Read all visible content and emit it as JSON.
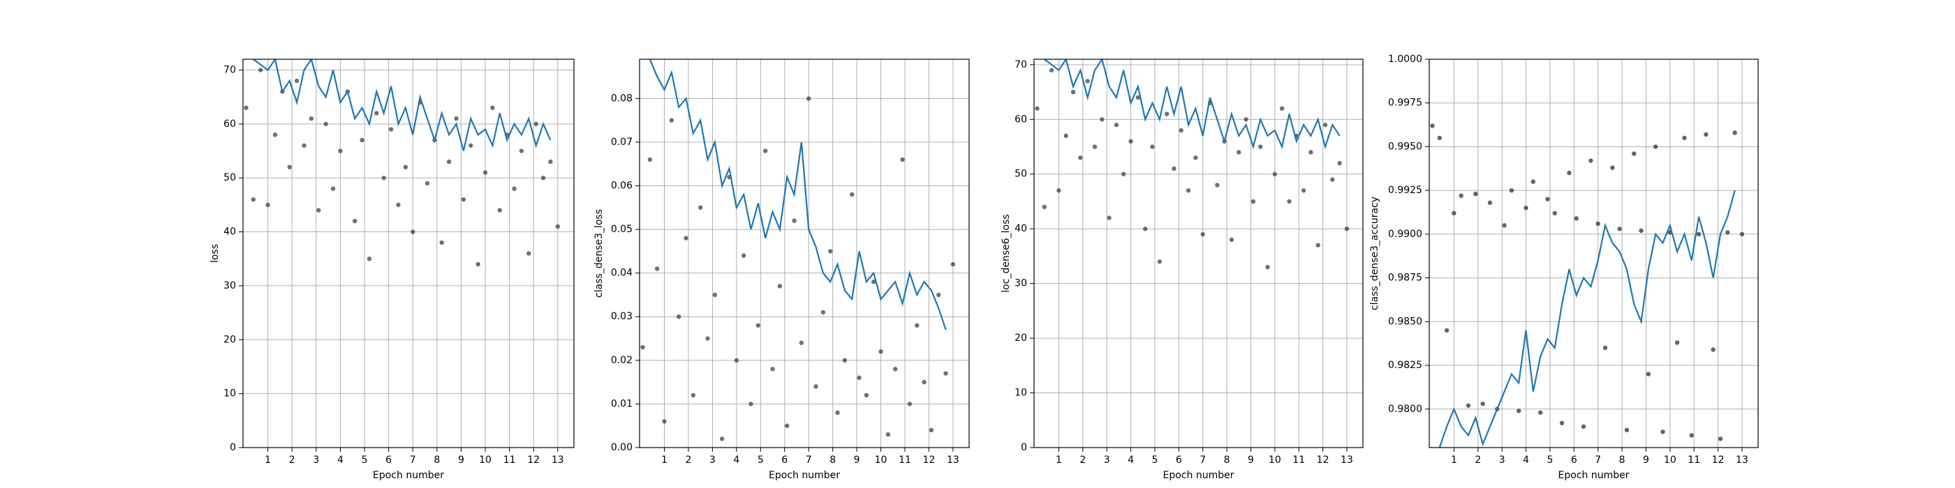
{
  "chart_data": [
    {
      "type": "scatter",
      "xlabel": "Epoch number",
      "ylabel": "loss",
      "grid": true,
      "xlim": [
        -0.03,
        13.67
      ],
      "xticks": [
        1,
        2,
        3,
        4,
        5,
        6,
        7,
        8,
        9,
        10,
        11,
        12,
        13
      ],
      "ylim": [
        0,
        72
      ],
      "yticks": [
        0,
        10,
        20,
        30,
        40,
        50,
        60,
        70
      ],
      "series": [
        {
          "type": "scatter",
          "color": "#333333",
          "x": [
            0.1,
            0.4,
            0.7,
            1.0,
            1.3,
            1.6,
            1.9,
            2.2,
            2.5,
            2.8,
            3.1,
            3.4,
            3.7,
            4.0,
            4.3,
            4.6,
            4.9,
            5.2,
            5.5,
            5.8,
            6.1,
            6.4,
            6.7,
            7.0,
            7.3,
            7.6,
            7.9,
            8.2,
            8.5,
            8.8,
            9.1,
            9.4,
            9.7,
            10.0,
            10.3,
            10.6,
            10.9,
            11.2,
            11.5,
            11.8,
            12.1,
            12.4,
            12.7,
            13.0
          ],
          "values": [
            63,
            46,
            70,
            45,
            58,
            66,
            52,
            68,
            56,
            61,
            44,
            60,
            48,
            55,
            66,
            42,
            57,
            35,
            62,
            50,
            59,
            45,
            52,
            40,
            64,
            49,
            57,
            38,
            53,
            61,
            46,
            56,
            34,
            51,
            63,
            44,
            58,
            48,
            55,
            36,
            60,
            50,
            53,
            41
          ]
        },
        {
          "type": "line",
          "color": "#1f77b4",
          "x": [
            0.4,
            0.7,
            1.0,
            1.3,
            1.6,
            1.9,
            2.2,
            2.5,
            2.8,
            3.1,
            3.4,
            3.7,
            4.0,
            4.3,
            4.6,
            4.9,
            5.2,
            5.5,
            5.8,
            6.1,
            6.4,
            6.7,
            7.0,
            7.3,
            7.6,
            7.9,
            8.2,
            8.5,
            8.8,
            9.1,
            9.4,
            9.7,
            10.0,
            10.3,
            10.6,
            10.9,
            11.2,
            11.5,
            11.8,
            12.1,
            12.4,
            12.7
          ],
          "values": [
            72,
            71,
            70,
            72,
            66,
            68,
            64,
            70,
            72,
            67,
            65,
            70,
            64,
            66,
            61,
            63,
            60,
            66,
            62,
            67,
            60,
            63,
            58,
            65,
            61,
            57,
            62,
            58,
            60,
            55,
            61,
            58,
            59,
            56,
            62,
            57,
            60,
            58,
            61,
            56,
            60,
            57
          ]
        }
      ]
    },
    {
      "type": "scatter",
      "xlabel": "Epoch number",
      "ylabel": "class_dense3_loss",
      "grid": true,
      "xlim": [
        -0.03,
        13.67
      ],
      "xticks": [
        1,
        2,
        3,
        4,
        5,
        6,
        7,
        8,
        9,
        10,
        11,
        12,
        13
      ],
      "ylim": [
        0,
        0.089
      ],
      "yticks": [
        {
          "value": 0,
          "label": "0.00"
        },
        0.01,
        0.02,
        0.03,
        0.04,
        0.05,
        0.06,
        0.07,
        0.08
      ],
      "series": [
        {
          "type": "scatter",
          "color": "#333333",
          "x": [
            0.1,
            0.4,
            0.7,
            1.0,
            1.3,
            1.6,
            1.9,
            2.2,
            2.5,
            2.8,
            3.1,
            3.4,
            3.7,
            4.0,
            4.3,
            4.6,
            4.9,
            5.2,
            5.5,
            5.8,
            6.1,
            6.4,
            6.7,
            7.0,
            7.3,
            7.6,
            7.9,
            8.2,
            8.5,
            8.8,
            9.1,
            9.4,
            9.7,
            10.0,
            10.3,
            10.6,
            10.9,
            11.2,
            11.5,
            11.8,
            12.1,
            12.4,
            12.7,
            13.0
          ],
          "values": [
            0.023,
            0.066,
            0.041,
            0.006,
            0.075,
            0.03,
            0.048,
            0.012,
            0.055,
            0.025,
            0.035,
            0.002,
            0.062,
            0.02,
            0.044,
            0.01,
            0.028,
            0.068,
            0.018,
            0.037,
            0.005,
            0.052,
            0.024,
            0.08,
            0.014,
            0.031,
            0.045,
            0.008,
            0.02,
            0.058,
            0.016,
            0.012,
            0.038,
            0.022,
            0.003,
            0.018,
            0.066,
            0.01,
            0.028,
            0.015,
            0.004,
            0.035,
            0.017,
            0.042
          ]
        },
        {
          "type": "line",
          "color": "#1f77b4",
          "x": [
            0.4,
            0.7,
            1.0,
            1.3,
            1.6,
            1.9,
            2.2,
            2.5,
            2.8,
            3.1,
            3.4,
            3.7,
            4.0,
            4.3,
            4.6,
            4.9,
            5.2,
            5.5,
            5.8,
            6.1,
            6.4,
            6.7,
            7.0,
            7.3,
            7.6,
            7.9,
            8.2,
            8.5,
            8.8,
            9.1,
            9.4,
            9.7,
            10.0,
            10.3,
            10.6,
            10.9,
            11.2,
            11.5,
            11.8,
            12.1,
            12.4,
            12.7
          ],
          "values": [
            0.089,
            0.085,
            0.082,
            0.086,
            0.078,
            0.08,
            0.072,
            0.075,
            0.066,
            0.07,
            0.06,
            0.064,
            0.055,
            0.058,
            0.05,
            0.056,
            0.048,
            0.054,
            0.05,
            0.062,
            0.058,
            0.07,
            0.05,
            0.046,
            0.04,
            0.038,
            0.042,
            0.036,
            0.034,
            0.045,
            0.038,
            0.04,
            0.034,
            0.036,
            0.038,
            0.033,
            0.04,
            0.035,
            0.038,
            0.036,
            0.032,
            0.027
          ]
        }
      ]
    },
    {
      "type": "scatter",
      "xlabel": "Epoch number",
      "ylabel": "loc_dense6_loss",
      "grid": true,
      "xlim": [
        -0.03,
        13.67
      ],
      "xticks": [
        1,
        2,
        3,
        4,
        5,
        6,
        7,
        8,
        9,
        10,
        11,
        12,
        13
      ],
      "ylim": [
        0,
        71
      ],
      "yticks": [
        0,
        10,
        20,
        30,
        40,
        50,
        60,
        70
      ],
      "series": [
        {
          "type": "scatter",
          "color": "#333333",
          "x": [
            0.1,
            0.4,
            0.7,
            1.0,
            1.3,
            1.6,
            1.9,
            2.2,
            2.5,
            2.8,
            3.1,
            3.4,
            3.7,
            4.0,
            4.3,
            4.6,
            4.9,
            5.2,
            5.5,
            5.8,
            6.1,
            6.4,
            6.7,
            7.0,
            7.3,
            7.6,
            7.9,
            8.2,
            8.5,
            8.8,
            9.1,
            9.4,
            9.7,
            10.0,
            10.3,
            10.6,
            10.9,
            11.2,
            11.5,
            11.8,
            12.1,
            12.4,
            12.7,
            13.0
          ],
          "values": [
            62,
            44,
            69,
            47,
            57,
            65,
            53,
            67,
            55,
            60,
            42,
            59,
            50,
            56,
            64,
            40,
            55,
            34,
            61,
            51,
            58,
            47,
            53,
            39,
            63,
            48,
            56,
            38,
            54,
            60,
            45,
            55,
            33,
            50,
            62,
            45,
            57,
            47,
            54,
            37,
            59,
            49,
            52,
            40
          ]
        },
        {
          "type": "line",
          "color": "#1f77b4",
          "x": [
            0.4,
            0.7,
            1.0,
            1.3,
            1.6,
            1.9,
            2.2,
            2.5,
            2.8,
            3.1,
            3.4,
            3.7,
            4.0,
            4.3,
            4.6,
            4.9,
            5.2,
            5.5,
            5.8,
            6.1,
            6.4,
            6.7,
            7.0,
            7.3,
            7.6,
            7.9,
            8.2,
            8.5,
            8.8,
            9.1,
            9.4,
            9.7,
            10.0,
            10.3,
            10.6,
            10.9,
            11.2,
            11.5,
            11.8,
            12.1,
            12.4,
            12.7
          ],
          "values": [
            71,
            70,
            69,
            71,
            66,
            69,
            64,
            69,
            71,
            66,
            64,
            69,
            63,
            66,
            60,
            63,
            60,
            66,
            61,
            66,
            59,
            62,
            57,
            64,
            60,
            56,
            61,
            57,
            59,
            55,
            60,
            57,
            58,
            55,
            61,
            56,
            59,
            57,
            60,
            55,
            59,
            57
          ]
        }
      ]
    },
    {
      "type": "scatter",
      "xlabel": "Epoch number",
      "ylabel": "class_dense3_accuracy",
      "grid": true,
      "xlim": [
        -0.03,
        13.67
      ],
      "xticks": [
        1,
        2,
        3,
        4,
        5,
        6,
        7,
        8,
        9,
        10,
        11,
        12,
        13
      ],
      "ylim": [
        0.9778,
        1.0
      ],
      "yticks": [
        {
          "value": 0.98,
          "label": "0.9800"
        },
        0.9825,
        {
          "value": 0.985,
          "label": "0.9850"
        },
        0.9875,
        {
          "value": 0.99,
          "label": "0.9900"
        },
        0.9925,
        {
          "value": 0.995,
          "label": "0.9950"
        },
        0.9975,
        {
          "value": 1.0,
          "label": "1.0000"
        }
      ],
      "series": [
        {
          "type": "scatter",
          "color": "#222222",
          "x": [
            0.1,
            0.4,
            0.7,
            1.0,
            1.3,
            1.6,
            1.9,
            2.2,
            2.5,
            2.8,
            3.1,
            3.4,
            3.7,
            4.0,
            4.3,
            4.6,
            4.9,
            5.2,
            5.5,
            5.8,
            6.1,
            6.4,
            6.7,
            7.0,
            7.3,
            7.6,
            7.9,
            8.2,
            8.5,
            8.8,
            9.1,
            9.4,
            9.7,
            10.0,
            10.3,
            10.6,
            10.9,
            11.2,
            11.5,
            11.8,
            12.1,
            12.4,
            12.7,
            13.0
          ],
          "values": [
            0.9962,
            0.9955,
            0.9845,
            0.9912,
            0.9922,
            0.9802,
            0.9923,
            0.9803,
            0.9918,
            0.98,
            0.9905,
            0.9925,
            0.9799,
            0.9915,
            0.993,
            0.9798,
            0.992,
            0.9912,
            0.9792,
            0.9935,
            0.9909,
            0.979,
            0.9942,
            0.9906,
            0.9835,
            0.9938,
            0.9903,
            0.9788,
            0.9946,
            0.9902,
            0.982,
            0.995,
            0.9787,
            0.9901,
            0.9838,
            0.9955,
            0.9785,
            0.99,
            0.9957,
            0.9834,
            0.9783,
            0.9901,
            0.9958,
            0.99
          ]
        },
        {
          "type": "line",
          "color": "#1f77b4",
          "x": [
            0.4,
            0.7,
            1.0,
            1.3,
            1.6,
            1.9,
            2.2,
            2.5,
            2.8,
            3.1,
            3.4,
            3.7,
            4.0,
            4.3,
            4.6,
            4.9,
            5.2,
            5.5,
            5.8,
            6.1,
            6.4,
            6.7,
            7.0,
            7.3,
            7.6,
            7.9,
            8.2,
            8.5,
            8.8,
            9.1,
            9.4,
            9.7,
            10.0,
            10.3,
            10.6,
            10.9,
            11.2,
            11.5,
            11.8,
            12.1,
            12.4,
            12.7
          ],
          "values": [
            0.9778,
            0.979,
            0.98,
            0.979,
            0.9785,
            0.9795,
            0.978,
            0.979,
            0.98,
            0.981,
            0.982,
            0.9815,
            0.9845,
            0.981,
            0.983,
            0.984,
            0.9835,
            0.986,
            0.988,
            0.9865,
            0.9875,
            0.987,
            0.9885,
            0.9905,
            0.9895,
            0.989,
            0.988,
            0.986,
            0.985,
            0.988,
            0.99,
            0.9895,
            0.9905,
            0.989,
            0.99,
            0.9885,
            0.991,
            0.9895,
            0.9875,
            0.99,
            0.991,
            0.9925
          ]
        }
      ]
    }
  ]
}
